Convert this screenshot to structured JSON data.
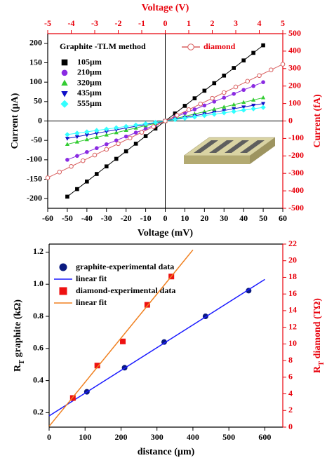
{
  "chart_data": [
    {
      "type": "line",
      "xlabel": "Voltage (mV)",
      "x2label": "Voltage (V)",
      "ylabel": "Current (µA)",
      "y2label": "Current (fA)",
      "xlim": [
        -60,
        60
      ],
      "xticks": [
        -60,
        -50,
        -40,
        -30,
        -20,
        -10,
        0,
        10,
        20,
        30,
        40,
        50,
        60
      ],
      "x2lim": [
        -5,
        5
      ],
      "x2ticks": [
        -5,
        -4,
        -3,
        -2,
        -1,
        0,
        1,
        2,
        3,
        4,
        5
      ],
      "ylim": [
        -225,
        225
      ],
      "yticks": [
        -200,
        -150,
        -100,
        -50,
        0,
        50,
        100,
        150,
        200
      ],
      "y2lim": [
        -500,
        500
      ],
      "y2ticks": [
        -500,
        -400,
        -300,
        -200,
        -100,
        0,
        100,
        200,
        300,
        400,
        500
      ],
      "zero_lines": true,
      "legend_title": "Graphite -TLM method",
      "x": [
        -50,
        -45,
        -40,
        -35,
        -30,
        -25,
        -20,
        -15,
        -10,
        -5,
        0,
        5,
        10,
        15,
        20,
        25,
        30,
        35,
        40,
        45,
        50
      ],
      "series": [
        {
          "name": "105µm",
          "color": "#000000",
          "marker": "square",
          "style": "line-markers",
          "values": [
            -195,
            -175.5,
            -156,
            -136.5,
            -117,
            -97.5,
            -78,
            -58.5,
            -39,
            -19.5,
            0,
            19.5,
            39,
            58.5,
            78,
            97.5,
            117,
            136.5,
            156,
            175.5,
            195
          ]
        },
        {
          "name": "210µm",
          "color": "#8a2be2",
          "marker": "circle",
          "style": "line-markers",
          "values": [
            -100,
            -90,
            -80,
            -70,
            -60,
            -50,
            -40,
            -30,
            -20,
            -10,
            0,
            10,
            20,
            30,
            40,
            50,
            60,
            70,
            80,
            90,
            100
          ]
        },
        {
          "name": "320µm",
          "color": "#33cc33",
          "marker": "triangle-up",
          "style": "line-markers",
          "values": [
            -60,
            -54,
            -48,
            -42,
            -36,
            -30,
            -24,
            -18,
            -12,
            -6,
            0,
            6,
            12,
            18,
            24,
            30,
            36,
            42,
            48,
            54,
            60
          ]
        },
        {
          "name": "435µm",
          "color": "#1010c8",
          "marker": "triangle-down",
          "style": "line-markers",
          "values": [
            -45,
            -40.5,
            -36,
            -31.5,
            -27,
            -22.5,
            -18,
            -13.5,
            -9,
            -4.5,
            0,
            4.5,
            9,
            13.5,
            18,
            22.5,
            27,
            31.5,
            36,
            40.5,
            45
          ]
        },
        {
          "name": "555µm",
          "color": "#33ffff",
          "marker": "diamond",
          "style": "line-markers",
          "values": [
            -35,
            -31.5,
            -28,
            -24.5,
            -21,
            -17.5,
            -14,
            -10.5,
            -7,
            -3.5,
            0,
            3.5,
            7,
            10.5,
            14,
            17.5,
            21,
            24.5,
            28,
            31.5,
            35
          ]
        },
        {
          "name": "diamond",
          "color": "#d96060",
          "marker": "circle-open",
          "style": "line-markers",
          "axis": "y2",
          "x_axis": "x2",
          "x": [
            -5,
            -4.5,
            -4,
            -3.5,
            -3,
            -2.5,
            -2,
            -1.5,
            -1,
            -0.5,
            0,
            0.5,
            1,
            1.5,
            2,
            2.5,
            3,
            3.5,
            4,
            4.5,
            5
          ],
          "values": [
            -325,
            -292.5,
            -260,
            -227.5,
            -195,
            -162.5,
            -130,
            -97.5,
            -65,
            -32.5,
            0,
            32.5,
            65,
            97.5,
            130,
            162.5,
            195,
            227.5,
            260,
            292.5,
            325
          ]
        }
      ]
    },
    {
      "type": "scatter",
      "xlabel": "distance (µm)",
      "ylabel": [
        "R",
        "T",
        " graphite (kΩ)"
      ],
      "y2label": [
        "R",
        "T",
        " diamond (TΩ)"
      ],
      "xlim": [
        0,
        650
      ],
      "xticks": [
        0,
        100,
        200,
        300,
        400,
        500,
        600
      ],
      "ylim": [
        0.11,
        1.25
      ],
      "yticks": [
        0.2,
        0.4,
        0.6,
        0.8,
        {
          "value": 1,
          "label": "1.0"
        },
        1.2
      ],
      "y2lim": [
        0,
        22
      ],
      "y2ticks": [
        0,
        2,
        4,
        6,
        8,
        10,
        12,
        14,
        16,
        18,
        20,
        22
      ],
      "series": [
        {
          "name": "graphite-experimental data",
          "color": "#0a1a80",
          "marker": "circle",
          "style": "markers",
          "x": [
            105,
            210,
            320,
            435,
            555
          ],
          "values": [
            0.33,
            0.48,
            0.64,
            0.8,
            0.96
          ]
        },
        {
          "name": "linear fit",
          "color": "#1a1aff",
          "style": "line",
          "x": [
            0,
            600
          ],
          "values": [
            0.18,
            1.03
          ]
        },
        {
          "name": "diamond-experimental data",
          "color": "#ee1111",
          "marker": "square",
          "style": "markers",
          "axis": "y2",
          "x": [
            66,
            134,
            205,
            273,
            340
          ],
          "values": [
            3.5,
            7.4,
            10.3,
            14.7,
            18.1
          ]
        },
        {
          "name": "linear fit",
          "color": "#f08020",
          "style": "line",
          "axis": "y2",
          "x": [
            0,
            400
          ],
          "values": [
            0.1,
            21.3
          ]
        }
      ]
    }
  ]
}
